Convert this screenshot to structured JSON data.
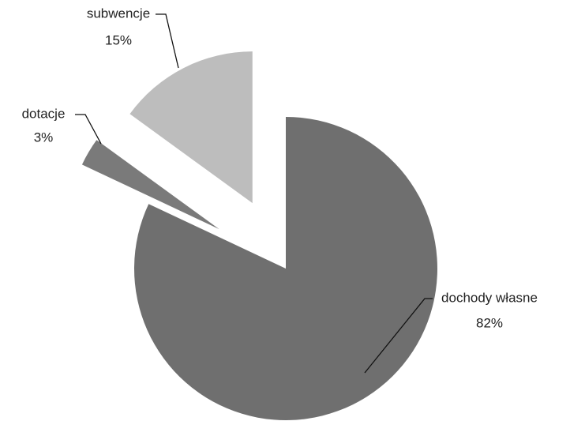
{
  "chart_data": {
    "type": "pie",
    "categories": [
      "dochody własne",
      "dotacje",
      "subwencje"
    ],
    "values": [
      82,
      3,
      15
    ],
    "value_labels": [
      "82%",
      "3%",
      "15%"
    ],
    "colors": [
      "#6f6f6f",
      "#7a7a7a",
      "#bdbdbd"
    ]
  }
}
